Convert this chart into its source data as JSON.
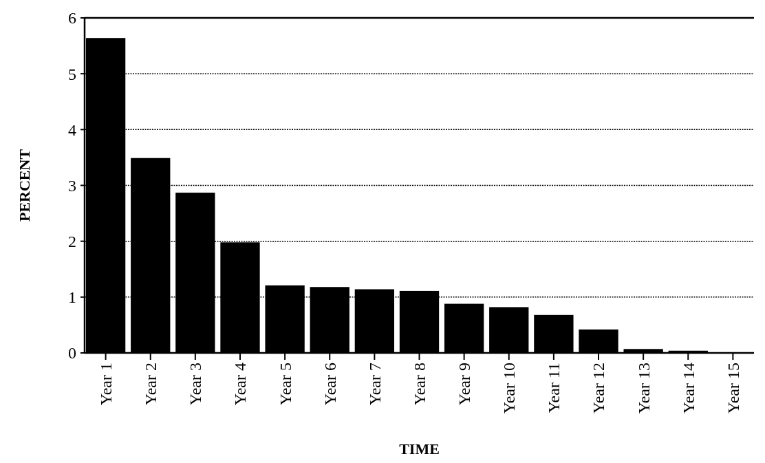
{
  "chart_data": {
    "type": "bar",
    "xlabel": "TIME",
    "ylabel": "PERCENT",
    "categories": [
      "Year 1",
      "Year 2",
      "Year 3",
      "Year 4",
      "Year 5",
      "Year 6",
      "Year 7",
      "Year 8",
      "Year 9",
      "Year 10",
      "Year 11",
      "Year 12",
      "Year 13",
      "Year 14",
      "Year 15"
    ],
    "values": [
      5.64,
      3.49,
      2.87,
      1.98,
      1.21,
      1.18,
      1.14,
      1.11,
      0.88,
      0.82,
      0.68,
      0.42,
      0.07,
      0.04,
      0.01
    ],
    "color": "#000000",
    "ylim": [
      0,
      6
    ],
    "yticks": [
      0,
      1,
      2,
      3,
      4,
      5,
      6
    ],
    "grid": "y"
  }
}
